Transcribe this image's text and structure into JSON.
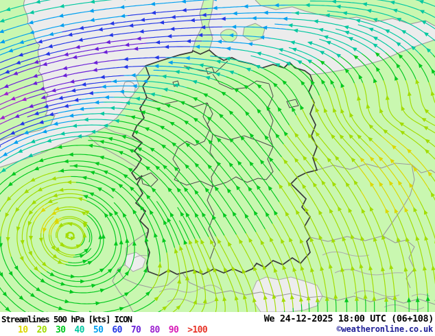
{
  "footer": {
    "title": "Streamlines 500 hPa [kts] ICON",
    "datetime": "We 24-12-2025 18:00 UTC (06+108)",
    "copyright": "©weatheronline.co.uk",
    "scale": {
      "values": [
        "10",
        "20",
        "30",
        "40",
        "50",
        "60",
        "70",
        "80",
        "90",
        ">100"
      ],
      "colors": [
        "#dcd800",
        "#a2dc00",
        "#00c81e",
        "#00c8a0",
        "#00a0f0",
        "#2336e6",
        "#6a1fd8",
        "#9c1fd0",
        "#d819b5",
        "#e83428"
      ]
    }
  },
  "map": {
    "sea_color": "#ececec",
    "land_color": "#c9f7b0",
    "alps_color": "#ededed",
    "coast_color": "#9a9a9a",
    "border_color": "#9a9a9a",
    "terrain_color": "#aaaaaa",
    "germany_border_color": "#383838",
    "state_border_color": "#474747"
  }
}
